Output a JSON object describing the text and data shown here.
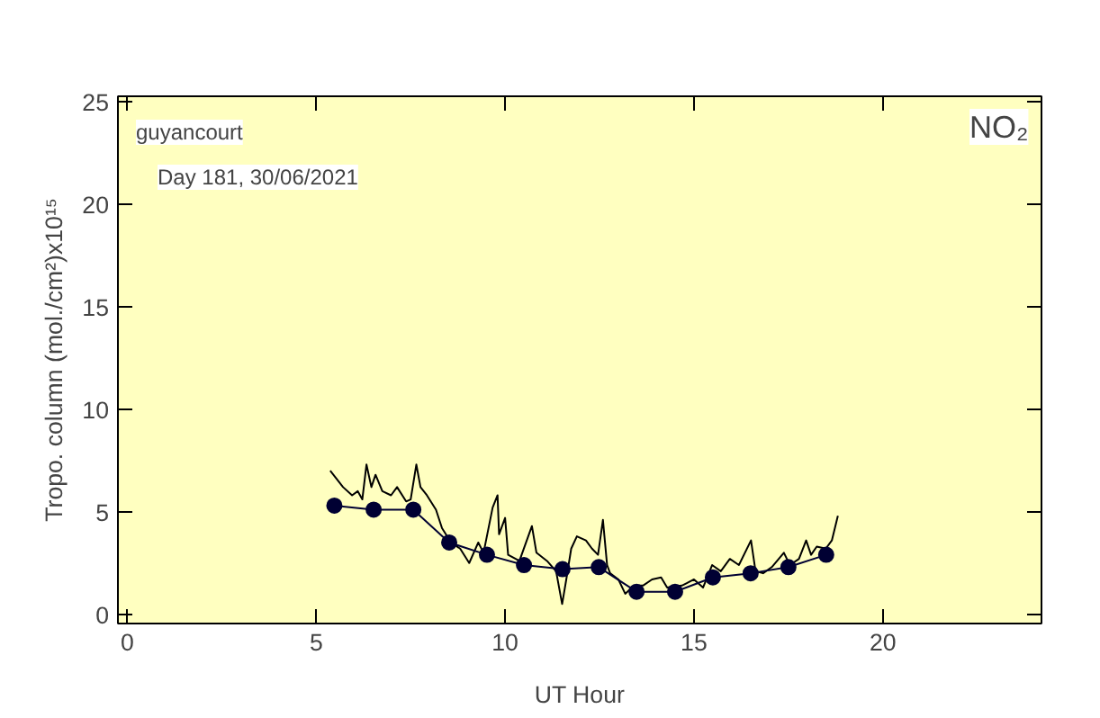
{
  "chart_data": {
    "type": "line",
    "xlabel": "UT Hour",
    "ylabel": "Tropo. column (mol./cm²)x10¹⁵",
    "annotations": [
      "guyancourt",
      "Day 181, 30/06/2021",
      "NO₂"
    ],
    "xlim": [
      -0.25,
      24.2
    ],
    "xticks": [
      0,
      5,
      10,
      15,
      20
    ],
    "ylim": [
      -0.45,
      25.25
    ],
    "yticks": [
      0,
      5,
      10,
      15,
      20,
      25
    ],
    "grid": false,
    "series": [
      {
        "color": "#000000",
        "marker": "none",
        "x": [
          5.37,
          5.71,
          5.95,
          6.1,
          6.22,
          6.33,
          6.46,
          6.57,
          6.75,
          6.98,
          7.14,
          7.38,
          7.5,
          7.65,
          7.76,
          7.93,
          8.17,
          8.33,
          8.57,
          8.81,
          9.05,
          9.29,
          9.43,
          9.67,
          9.8,
          9.84,
          10.0,
          10.08,
          10.38,
          10.71,
          10.83,
          11.11,
          11.35,
          11.51,
          11.62,
          11.75,
          11.9,
          12.14,
          12.3,
          12.46,
          12.59,
          12.7,
          12.78,
          13.0,
          13.18,
          13.41,
          13.65,
          13.89,
          14.13,
          14.29,
          14.68,
          15.0,
          15.24,
          15.48,
          15.71,
          15.95,
          16.19,
          16.51,
          16.63,
          16.83,
          17.06,
          17.38,
          17.54,
          17.78,
          17.97,
          18.1,
          18.25,
          18.49,
          18.65,
          18.81
        ],
        "values": [
          7.0,
          6.2,
          5.8,
          6.0,
          5.6,
          7.3,
          6.2,
          6.8,
          6.0,
          5.8,
          6.2,
          5.5,
          5.6,
          7.3,
          6.2,
          5.8,
          5.1,
          4.2,
          3.5,
          3.2,
          2.5,
          3.5,
          3.0,
          5.2,
          5.8,
          3.9,
          4.7,
          2.9,
          2.6,
          4.3,
          3.0,
          2.6,
          2.1,
          0.5,
          1.7,
          3.2,
          3.8,
          3.6,
          3.2,
          2.9,
          4.6,
          2.4,
          2.0,
          1.7,
          1.0,
          1.4,
          1.4,
          1.7,
          1.8,
          1.3,
          1.4,
          1.7,
          1.3,
          2.4,
          2.1,
          2.7,
          2.4,
          3.6,
          2.1,
          2.0,
          2.3,
          3.0,
          2.4,
          2.7,
          3.6,
          2.9,
          3.3,
          3.2,
          3.6,
          4.8
        ]
      },
      {
        "color": "#000033",
        "marker": "circle",
        "x": [
          5.48,
          6.52,
          7.57,
          8.52,
          9.52,
          10.5,
          11.52,
          12.48,
          13.48,
          14.5,
          15.5,
          16.5,
          17.5,
          18.5
        ],
        "values": [
          5.3,
          5.1,
          5.1,
          3.5,
          2.9,
          2.4,
          2.2,
          2.3,
          1.1,
          1.1,
          1.8,
          2.0,
          2.3,
          2.9
        ]
      }
    ]
  }
}
